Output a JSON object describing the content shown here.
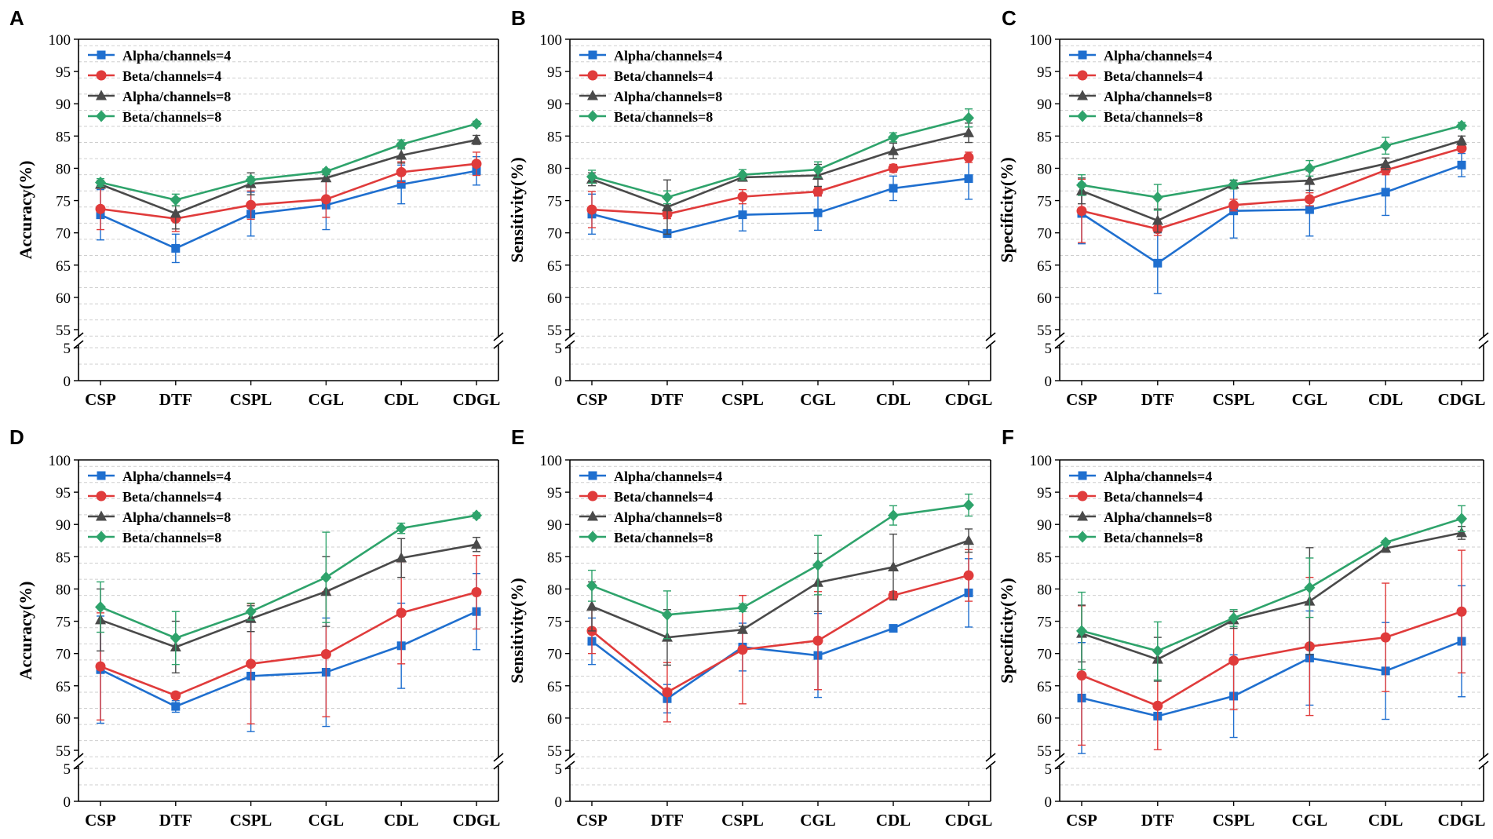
{
  "figure": {
    "colors": {
      "Alpha/channels=4": "#1f6fcf",
      "Beta/channels=4": "#e03b3b",
      "Alpha/channels=8": "#4a4a4a",
      "Beta/channels=8": "#2ea36b"
    },
    "markers": {
      "Alpha/channels=4": "square",
      "Beta/channels=4": "circle",
      "Alpha/channels=8": "triangle",
      "Beta/channels=8": "diamond"
    }
  },
  "chart_data": [
    {
      "type": "line",
      "panel": "A",
      "ylabel": "Accuracy(%)",
      "categories": [
        "CSP",
        "DTF",
        "CSPL",
        "CGL",
        "CDL",
        "CDGL"
      ],
      "upper_ticks": [
        55,
        60,
        65,
        70,
        75,
        80,
        85,
        90,
        95,
        100
      ],
      "lower_ticks": [
        0,
        5
      ],
      "ylim_upper": [
        54,
        100
      ],
      "ylim_lower": [
        0,
        5
      ],
      "legend_position": "top-left",
      "series": [
        {
          "name": "Alpha/channels=4",
          "values": [
            72.8,
            67.6,
            72.9,
            74.3,
            77.5,
            79.6
          ],
          "err": [
            3.9,
            2.2,
            3.4,
            3.8,
            3.0,
            2.2
          ]
        },
        {
          "name": "Beta/channels=4",
          "values": [
            73.7,
            72.2,
            74.3,
            75.2,
            79.4,
            80.7
          ],
          "err": [
            3.2,
            2.0,
            2.2,
            2.8,
            1.6,
            1.8
          ]
        },
        {
          "name": "Alpha/channels=8",
          "values": [
            77.5,
            73.0,
            77.6,
            78.5,
            82.0,
            84.4
          ],
          "err": [
            0.6,
            2.4,
            1.7,
            0.5,
            1.2,
            0.7
          ]
        },
        {
          "name": "Beta/channels=8",
          "values": [
            77.8,
            75.1,
            78.2,
            79.5,
            83.7,
            86.9
          ],
          "err": [
            0.6,
            0.9,
            0.5,
            0.4,
            0.7,
            0.4
          ]
        }
      ]
    },
    {
      "type": "line",
      "panel": "B",
      "ylabel": "Sensitivity(%)",
      "categories": [
        "CSP",
        "DTF",
        "CSPL",
        "CGL",
        "CDL",
        "CDGL"
      ],
      "upper_ticks": [
        55,
        60,
        65,
        70,
        75,
        80,
        85,
        90,
        95,
        100
      ],
      "lower_ticks": [
        0,
        5
      ],
      "ylim_upper": [
        54,
        100
      ],
      "ylim_lower": [
        0,
        5
      ],
      "legend_position": "top-left",
      "series": [
        {
          "name": "Alpha/channels=4",
          "values": [
            72.9,
            69.9,
            72.8,
            73.1,
            76.9,
            78.4
          ],
          "err": [
            3.1,
            0.6,
            2.5,
            2.7,
            1.9,
            3.2
          ]
        },
        {
          "name": "Beta/channels=4",
          "values": [
            73.6,
            72.9,
            75.6,
            76.4,
            80.0,
            81.7
          ],
          "err": [
            2.8,
            0.7,
            1.1,
            0.7,
            0.6,
            0.8
          ]
        },
        {
          "name": "Alpha/channels=8",
          "values": [
            78.3,
            74.0,
            78.6,
            78.9,
            82.7,
            85.5
          ],
          "err": [
            1.0,
            4.2,
            0.6,
            1.7,
            1.2,
            1.5
          ]
        },
        {
          "name": "Beta/channels=8",
          "values": [
            78.7,
            75.5,
            79.0,
            79.8,
            84.8,
            87.8
          ],
          "err": [
            1.0,
            1.0,
            0.8,
            1.2,
            0.7,
            1.4
          ]
        }
      ]
    },
    {
      "type": "line",
      "panel": "C",
      "ylabel": "Specificity(%)",
      "categories": [
        "CSP",
        "DTF",
        "CSPL",
        "CGL",
        "CDL",
        "CDGL"
      ],
      "upper_ticks": [
        55,
        60,
        65,
        70,
        75,
        80,
        85,
        90,
        95,
        100
      ],
      "lower_ticks": [
        0,
        5
      ],
      "ylim_upper": [
        54,
        100
      ],
      "ylim_lower": [
        0,
        5
      ],
      "legend_position": "top-left",
      "series": [
        {
          "name": "Alpha/channels=4",
          "values": [
            73.0,
            65.3,
            73.4,
            73.6,
            76.3,
            80.5
          ],
          "err": [
            4.7,
            4.7,
            4.2,
            4.1,
            3.6,
            1.8
          ]
        },
        {
          "name": "Beta/channels=4",
          "values": [
            73.4,
            70.6,
            74.3,
            75.2,
            79.7,
            83.1
          ],
          "err": [
            4.9,
            1.0,
            0.9,
            1.0,
            0.7,
            0.5
          ]
        },
        {
          "name": "Alpha/channels=8",
          "values": [
            76.5,
            71.9,
            77.5,
            78.1,
            80.7,
            84.3
          ],
          "err": [
            2.0,
            1.8,
            0.6,
            1.5,
            0.9,
            0.7
          ]
        },
        {
          "name": "Beta/channels=8",
          "values": [
            77.4,
            75.5,
            77.5,
            80.0,
            83.5,
            86.6
          ],
          "err": [
            1.6,
            2.0,
            0.7,
            1.2,
            1.3,
            0.5
          ]
        }
      ]
    },
    {
      "type": "line",
      "panel": "D",
      "ylabel": "Accuracy(%)",
      "categories": [
        "CSP",
        "DTF",
        "CSPL",
        "CGL",
        "CDL",
        "CDGL"
      ],
      "upper_ticks": [
        55,
        60,
        65,
        70,
        75,
        80,
        85,
        90,
        95,
        100
      ],
      "lower_ticks": [
        0,
        5
      ],
      "ylim_upper": [
        54,
        100
      ],
      "ylim_lower": [
        0,
        5
      ],
      "legend_position": "top-left",
      "series": [
        {
          "name": "Alpha/channels=4",
          "values": [
            67.5,
            61.8,
            66.5,
            67.1,
            71.2,
            76.5
          ],
          "err": [
            8.3,
            0.9,
            8.6,
            8.4,
            6.6,
            5.9
          ]
        },
        {
          "name": "Beta/channels=4",
          "values": [
            68.0,
            63.5,
            68.4,
            69.9,
            76.3,
            79.5
          ],
          "err": [
            8.3,
            0.5,
            9.3,
            9.7,
            7.9,
            5.7
          ]
        },
        {
          "name": "Alpha/channels=8",
          "values": [
            75.2,
            71.0,
            75.4,
            79.6,
            84.8,
            86.9
          ],
          "err": [
            4.8,
            4.0,
            2.0,
            5.4,
            3.0,
            1.1
          ]
        },
        {
          "name": "Beta/channels=8",
          "values": [
            77.2,
            72.4,
            76.5,
            81.8,
            89.4,
            91.4
          ],
          "err": [
            3.9,
            4.1,
            1.3,
            7.0,
            0.8,
            0.4
          ]
        }
      ]
    },
    {
      "type": "line",
      "panel": "E",
      "ylabel": "Sensitivity(%)",
      "categories": [
        "CSP",
        "DTF",
        "CSPL",
        "CGL",
        "CDL",
        "CDGL"
      ],
      "upper_ticks": [
        55,
        60,
        65,
        70,
        75,
        80,
        85,
        90,
        95,
        100
      ],
      "lower_ticks": [
        0,
        5
      ],
      "ylim_upper": [
        54,
        100
      ],
      "ylim_lower": [
        0,
        5
      ],
      "legend_position": "top-left",
      "series": [
        {
          "name": "Alpha/channels=4",
          "values": [
            71.9,
            63.0,
            71.0,
            69.7,
            73.9,
            79.4
          ],
          "err": [
            3.6,
            2.2,
            3.7,
            6.5,
            0.5,
            5.3
          ]
        },
        {
          "name": "Beta/channels=4",
          "values": [
            73.5,
            64.0,
            70.6,
            72.0,
            79.0,
            82.1
          ],
          "err": [
            3.5,
            4.6,
            8.4,
            7.6,
            0.6,
            4.0
          ]
        },
        {
          "name": "Alpha/channels=8",
          "values": [
            77.3,
            72.5,
            73.7,
            81.0,
            83.4,
            87.5
          ],
          "err": [
            3.8,
            4.3,
            0.5,
            4.5,
            5.1,
            1.8
          ]
        },
        {
          "name": "Beta/channels=8",
          "values": [
            80.5,
            76.0,
            77.1,
            83.7,
            91.4,
            93.0
          ],
          "err": [
            2.4,
            3.7,
            0.6,
            4.6,
            1.5,
            1.7
          ]
        }
      ]
    },
    {
      "type": "line",
      "panel": "F",
      "ylabel": "Specificity(%)",
      "categories": [
        "CSP",
        "DTF",
        "CSPL",
        "CGL",
        "CDL",
        "CDGL"
      ],
      "upper_ticks": [
        55,
        60,
        65,
        70,
        75,
        80,
        85,
        90,
        95,
        100
      ],
      "lower_ticks": [
        0,
        5
      ],
      "ylim_upper": [
        54,
        100
      ],
      "ylim_lower": [
        0,
        5
      ],
      "legend_position": "top-left",
      "series": [
        {
          "name": "Alpha/channels=4",
          "values": [
            63.1,
            60.3,
            63.4,
            69.3,
            67.3,
            71.9
          ],
          "err": [
            8.6,
            0.5,
            6.4,
            7.3,
            7.5,
            8.6
          ]
        },
        {
          "name": "Beta/channels=4",
          "values": [
            66.6,
            61.9,
            68.9,
            71.1,
            72.5,
            76.5
          ],
          "err": [
            10.8,
            6.8,
            7.6,
            10.7,
            8.4,
            9.5
          ]
        },
        {
          "name": "Alpha/channels=8",
          "values": [
            73.1,
            69.1,
            75.2,
            78.1,
            86.3,
            88.7
          ],
          "err": [
            4.4,
            3.4,
            1.3,
            8.3,
            0.6,
            1.0
          ]
        },
        {
          "name": "Beta/channels=8",
          "values": [
            73.5,
            70.4,
            75.5,
            80.2,
            87.2,
            90.9
          ],
          "err": [
            6.0,
            4.5,
            1.3,
            4.6,
            0.3,
            2.0
          ]
        }
      ]
    }
  ]
}
